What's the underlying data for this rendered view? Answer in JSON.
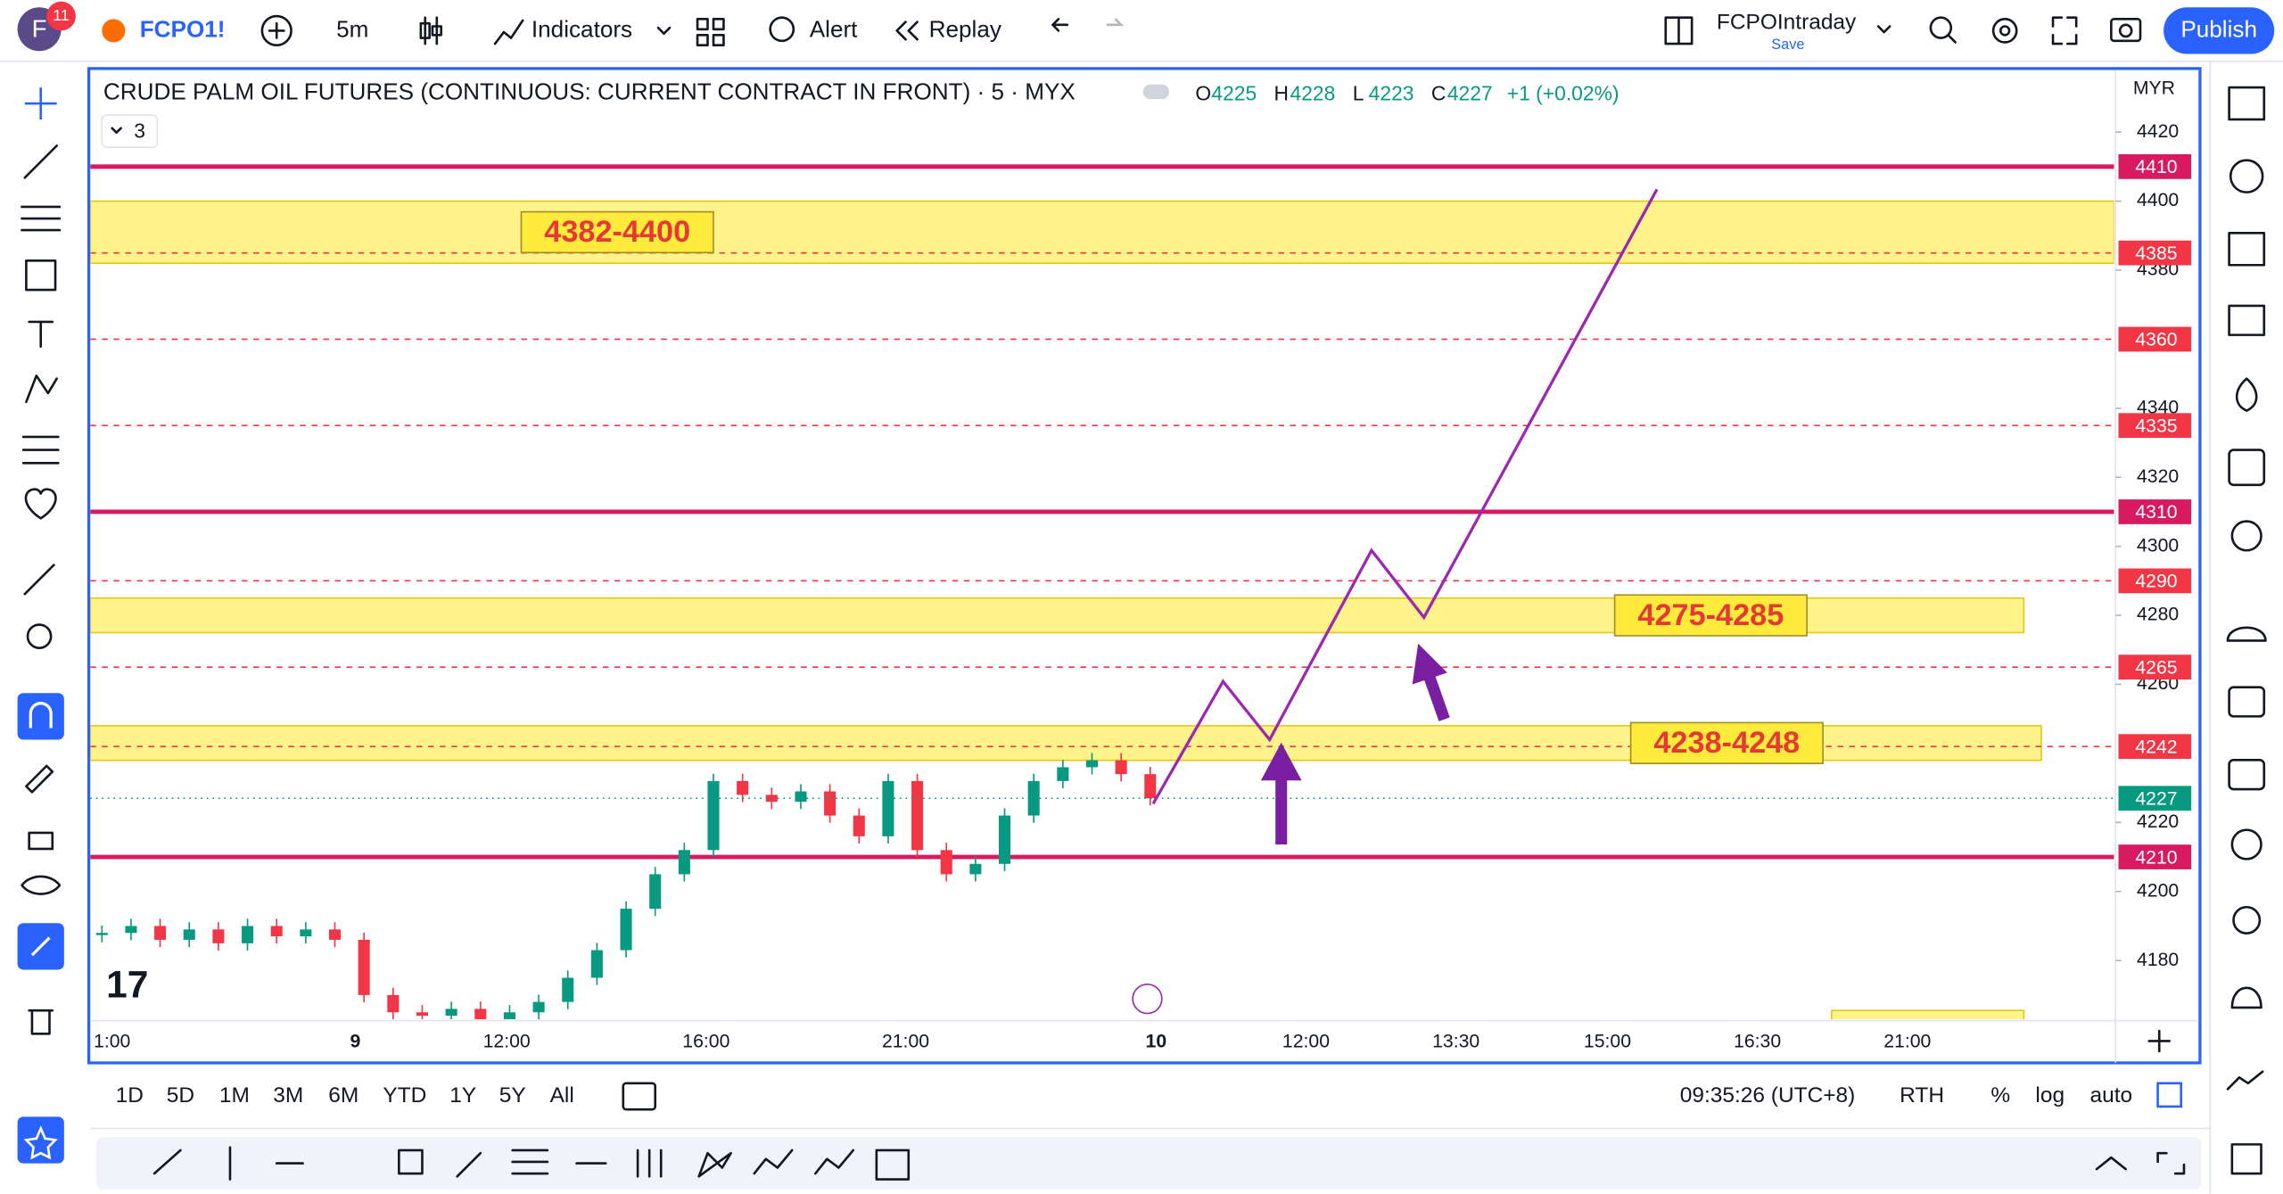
{
  "header": {
    "avatar": "F",
    "badge": "11",
    "symbol": "FCPO1!",
    "interval": "5m",
    "indicators": "Indicators",
    "alert": "Alert",
    "replay": "Replay",
    "layout_name": "FCPOIntraday",
    "save": "Save",
    "publish": "Publish"
  },
  "chart_data": {
    "type": "candlestick",
    "title": "CRUDE PALM OIL FUTURES (CONTINUOUS: CURRENT CONTRACT IN FRONT) · 5 · MYX",
    "ohlc": [
      {
        "label": "O",
        "value": 4225
      },
      {
        "label": "H",
        "value": 4228
      },
      {
        "label": "L",
        "value": 4223
      },
      {
        "label": "C",
        "value": 4227
      }
    ],
    "change": "+1 (+0.02%)",
    "indicator_count": "3",
    "currency": "MYR",
    "ylim": [
      4163,
      4438
    ],
    "yticks": [
      4420,
      4400,
      4380,
      4340,
      4320,
      4300,
      4280,
      4260,
      4220,
      4200,
      4180
    ],
    "x": [
      "1:00",
      "9",
      "12:00",
      "16:00",
      "21:00",
      "10",
      "12:00",
      "13:30",
      "15:00",
      "16:30",
      "21:00"
    ],
    "closes": [
      4188,
      4190,
      4186,
      4189,
      4185,
      4190,
      4187,
      4189,
      4186,
      4170,
      4165,
      4164,
      4166,
      4163,
      4165,
      4168,
      4175,
      4183,
      4195,
      4205,
      4212,
      4232,
      4228,
      4226,
      4229,
      4222,
      4216,
      4232,
      4212,
      4205,
      4208,
      4222,
      4232,
      4236,
      4238,
      4234,
      4227
    ],
    "last_price": 4227,
    "levels": [
      {
        "value": 4410,
        "style": "solid"
      },
      {
        "value": 4385,
        "style": "dashed"
      },
      {
        "value": 4360,
        "style": "dashed"
      },
      {
        "value": 4335,
        "style": "dashed"
      },
      {
        "value": 4310,
        "style": "solid"
      },
      {
        "value": 4290,
        "style": "dashed"
      },
      {
        "value": 4265,
        "style": "dashed"
      },
      {
        "value": 4242,
        "style": "dashed"
      },
      {
        "value": 4210,
        "style": "solid"
      }
    ],
    "zones": [
      {
        "low": 4382,
        "high": 4400,
        "label": "4382-4400"
      },
      {
        "low": 4275,
        "high": 4285,
        "label": "4275-4285"
      },
      {
        "low": 4238,
        "high": 4248,
        "label": "4238-4248"
      }
    ]
  },
  "footer": {
    "ranges": [
      "1D",
      "5D",
      "1M",
      "3M",
      "6M",
      "YTD",
      "1Y",
      "5Y",
      "All"
    ],
    "time": "09:35:26 (UTC+8)",
    "session": "RTH",
    "percent": "%",
    "log": "log",
    "auto": "auto"
  }
}
